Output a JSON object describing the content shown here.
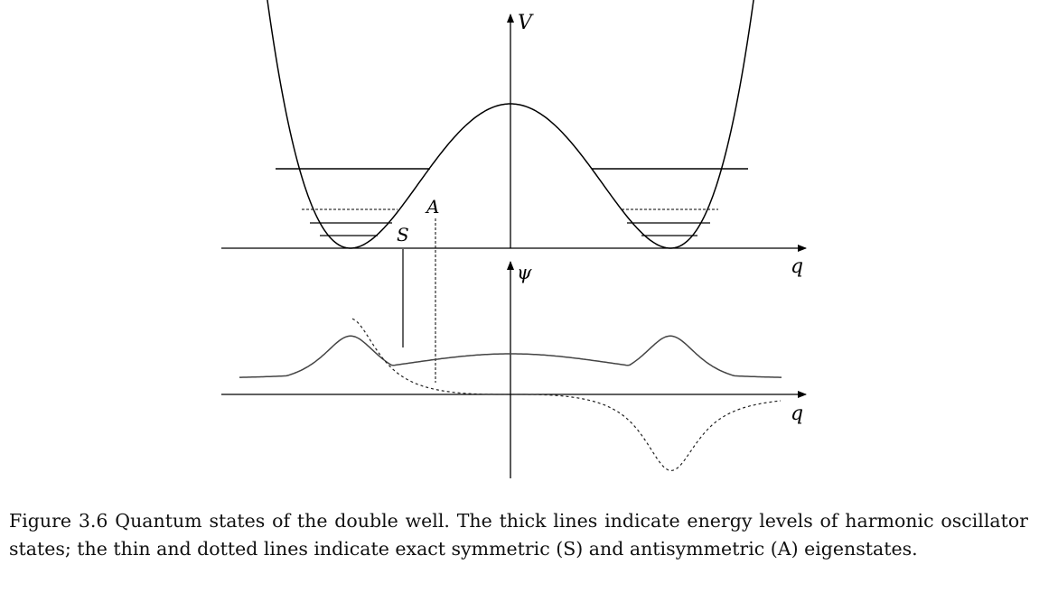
{
  "figure": {
    "axis_labels": {
      "potential": "V",
      "coordinate_top": "q",
      "wavefunction": "ψ",
      "coordinate_bottom": "q"
    },
    "state_labels": {
      "symmetric": "S",
      "antisymmetric": "A"
    },
    "energy_levels_per_well": 4,
    "curves": [
      "potential-double-well",
      "symmetric-eigenstate",
      "antisymmetric-eigenstate"
    ]
  },
  "caption": {
    "label": "Figure 3.6",
    "text": "Quantum states of the double well. The thick lines indicate energy levels of harmonic oscillator states; the thin and dotted lines indicate exact symmetric (S) and antisymmetric (A) eigenstates."
  }
}
